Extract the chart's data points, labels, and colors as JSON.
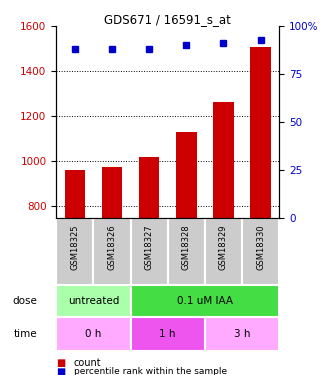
{
  "title": "GDS671 / 16591_s_at",
  "samples": [
    "GSM18325",
    "GSM18326",
    "GSM18327",
    "GSM18328",
    "GSM18329",
    "GSM18330"
  ],
  "counts": [
    960,
    975,
    1020,
    1130,
    1265,
    1510
  ],
  "percentiles": [
    88,
    88,
    88,
    90,
    91,
    93
  ],
  "ylim_left": [
    750,
    1600
  ],
  "ylim_right": [
    0,
    100
  ],
  "yticks_left": [
    800,
    1000,
    1200,
    1400,
    1600
  ],
  "yticks_right": [
    0,
    25,
    50,
    75,
    100
  ],
  "bar_color": "#cc0000",
  "dot_color": "#0000cc",
  "dose_groups": [
    {
      "label": "untreated",
      "color": "#aaffaa",
      "span": [
        0,
        2
      ]
    },
    {
      "label": "0.1 uM IAA",
      "color": "#44dd44",
      "span": [
        2,
        6
      ]
    }
  ],
  "time_groups": [
    {
      "label": "0 h",
      "color": "#ffaaff",
      "span": [
        0,
        2
      ]
    },
    {
      "label": "1 h",
      "color": "#ee55ee",
      "span": [
        2,
        4
      ]
    },
    {
      "label": "3 h",
      "color": "#ffaaff",
      "span": [
        4,
        6
      ]
    }
  ]
}
